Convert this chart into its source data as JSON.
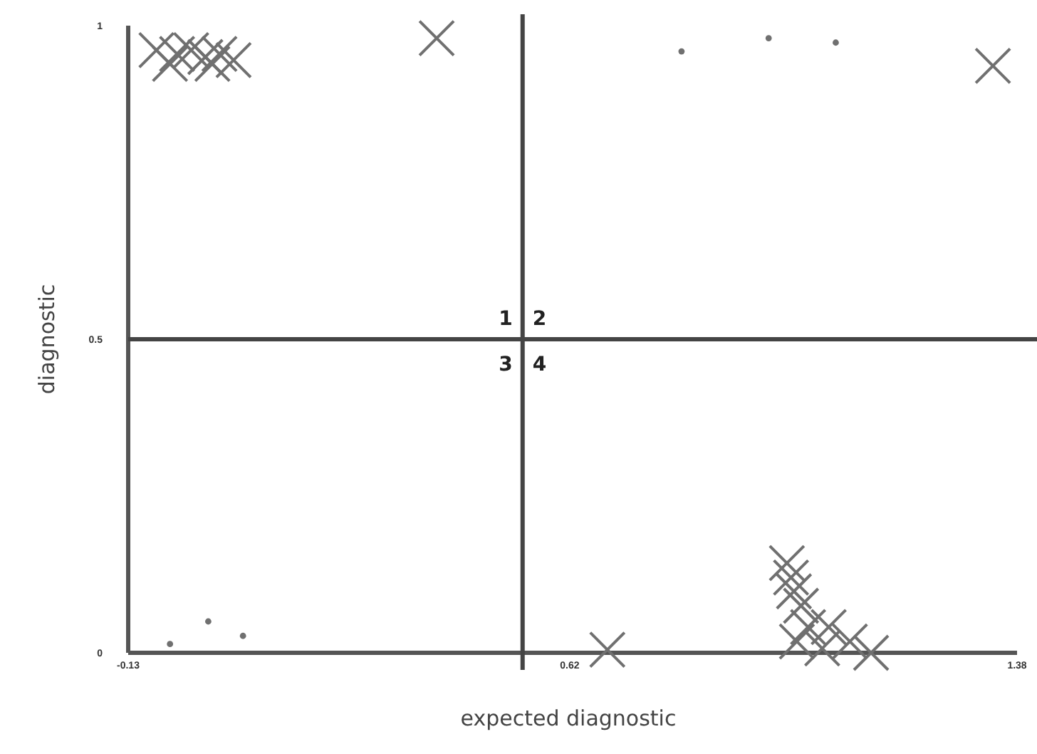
{
  "chart_data": {
    "type": "scatter",
    "xlabel": "expected diagnostic",
    "ylabel": "diagnostic",
    "xlim": [
      -0.13,
      1.38
    ],
    "xticks": [
      -0.13,
      0.62,
      1.38
    ],
    "ylim": [
      0,
      1
    ],
    "yticks": [
      0,
      0.5,
      1
    ],
    "grid": false,
    "series": [
      {
        "color": "#707070",
        "marker": "cross",
        "x": [
          -0.082,
          -0.059,
          -0.047,
          -0.023,
          0.001,
          0.013,
          0.025,
          0.049,
          0.394,
          1.339,
          0.684,
          0.989,
          0.996,
          1.001,
          1.013,
          1.025,
          1.006,
          1.049,
          1.06,
          1.096,
          1.132
        ],
        "values": [
          0.961,
          0.939,
          0.955,
          0.961,
          0.95,
          0.939,
          0.955,
          0.945,
          0.98,
          0.936,
          0.005,
          0.143,
          0.12,
          0.098,
          0.075,
          0.041,
          0.018,
          0.007,
          0.041,
          0.018,
          0.0
        ]
      },
      {
        "color": "#707070",
        "marker": "circle",
        "x": [
          0.81,
          0.958,
          1.072,
          -0.059,
          0.006,
          0.065
        ],
        "values": [
          0.959,
          0.98,
          0.973,
          0.014,
          0.05,
          0.027
        ]
      }
    ],
    "ref_lines": [
      {
        "axis": "x",
        "value": 0.54,
        "color": "#444444"
      },
      {
        "axis": "y",
        "value": 0.5,
        "color": "#444444"
      }
    ],
    "annotations": [
      "1",
      "2",
      "3",
      "4"
    ]
  }
}
